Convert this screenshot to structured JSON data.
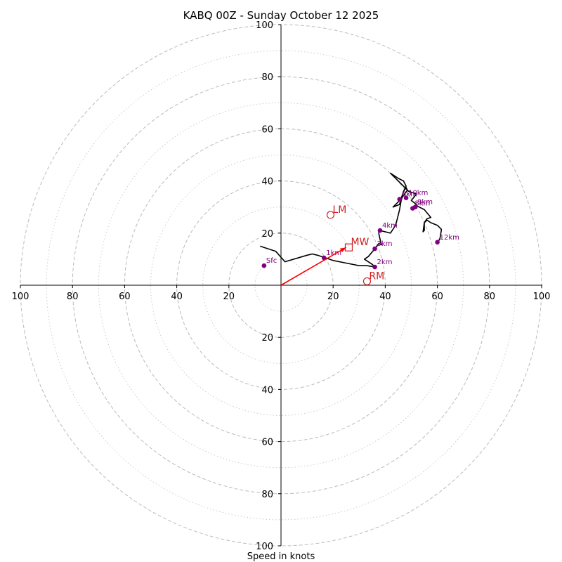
{
  "chart_data": {
    "type": "hodograph",
    "title": "KABQ 00Z - Sunday October 12 2025",
    "xlabel": "Speed in knots",
    "units": "knots",
    "max_speed": 100,
    "major_rings": [
      20,
      40,
      60,
      80,
      100
    ],
    "minor_rings": [
      10,
      30,
      50,
      70,
      90
    ],
    "x_tick_labels": [
      "100",
      "80",
      "60",
      "40",
      "20",
      "20",
      "40",
      "60",
      "80",
      "100"
    ],
    "y_tick_labels": [
      "100",
      "80",
      "60",
      "40",
      "20",
      "20",
      "40",
      "60",
      "80",
      "100"
    ],
    "x_tick_values": [
      -100,
      -80,
      -60,
      -40,
      -20,
      20,
      40,
      60,
      80,
      100
    ],
    "y_tick_values": [
      100,
      80,
      60,
      40,
      20,
      -20,
      -40,
      -60,
      -80,
      -100
    ],
    "trace_color": "#000000",
    "height_marker_color": "#800080",
    "storm_color": "#cc2222",
    "mean_wind_arrow_color": "#ff0000",
    "hodograph_trace": [
      [
        -8,
        15
      ],
      [
        -2,
        13
      ],
      [
        1.5,
        9
      ],
      [
        10,
        11.5
      ],
      [
        12,
        12
      ],
      [
        14,
        11.5
      ],
      [
        17,
        10.5
      ],
      [
        20,
        9.5
      ],
      [
        25,
        8.5
      ],
      [
        30,
        7.5
      ],
      [
        33,
        7.5
      ],
      [
        36,
        7
      ],
      [
        35,
        8
      ],
      [
        32,
        10
      ],
      [
        33.5,
        11
      ],
      [
        36,
        14
      ],
      [
        37.5,
        16
      ],
      [
        38.5,
        15.5
      ],
      [
        37.5,
        20
      ],
      [
        38,
        21
      ],
      [
        42,
        20
      ],
      [
        44,
        23
      ],
      [
        45.5,
        29
      ],
      [
        46,
        32
      ],
      [
        47,
        36
      ],
      [
        48,
        37.5
      ],
      [
        48.5,
        36.5
      ],
      [
        46,
        33
      ],
      [
        45.5,
        31
      ],
      [
        43,
        30
      ],
      [
        46,
        33
      ],
      [
        47,
        36
      ],
      [
        48,
        38
      ],
      [
        47,
        40
      ],
      [
        45,
        41
      ],
      [
        42,
        43
      ],
      [
        47,
        38
      ],
      [
        49,
        36
      ],
      [
        52,
        35
      ],
      [
        50,
        32.5
      ],
      [
        52,
        31
      ],
      [
        51,
        29.5
      ],
      [
        50.5,
        29.5
      ],
      [
        52,
        30.5
      ],
      [
        55,
        29
      ],
      [
        57.5,
        26
      ],
      [
        56,
        25.5
      ],
      [
        55,
        24
      ],
      [
        55,
        21
      ],
      [
        54.5,
        20.5
      ],
      [
        55,
        24
      ],
      [
        56,
        25
      ],
      [
        57.5,
        24
      ],
      [
        60,
        23
      ],
      [
        61,
        22
      ],
      [
        61.5,
        21.5
      ],
      [
        61.5,
        21
      ],
      [
        61,
        18
      ],
      [
        60.5,
        17
      ],
      [
        60.5,
        16.5
      ]
    ],
    "height_markers": [
      {
        "label": "Sfc",
        "u": -6.5,
        "v": 7.5
      },
      {
        "label": "1km",
        "u": 16.5,
        "v": 10.5
      },
      {
        "label": "2km",
        "u": 36,
        "v": 7
      },
      {
        "label": "3km",
        "u": 36,
        "v": 14
      },
      {
        "label": "4km",
        "u": 38,
        "v": 21
      },
      {
        "label": "6km",
        "u": 45.5,
        "v": 33
      },
      {
        "label": "8km",
        "u": 50.5,
        "v": 29.5
      },
      {
        "label": "10km",
        "u": 48,
        "v": 33.5
      },
      {
        "label": "9km",
        "u": 51.5,
        "v": 30
      },
      {
        "label": "12km",
        "u": 60,
        "v": 16.5
      }
    ],
    "storm_vectors": [
      {
        "label": "LM",
        "marker": "circle",
        "u": 19,
        "v": 27
      },
      {
        "label": "MW",
        "marker": "square",
        "u": 26,
        "v": 14.5
      },
      {
        "label": "RM",
        "marker": "circle",
        "u": 33,
        "v": 1.5
      }
    ],
    "mean_wind_arrow": {
      "u": 25,
      "v": 14.5
    }
  }
}
